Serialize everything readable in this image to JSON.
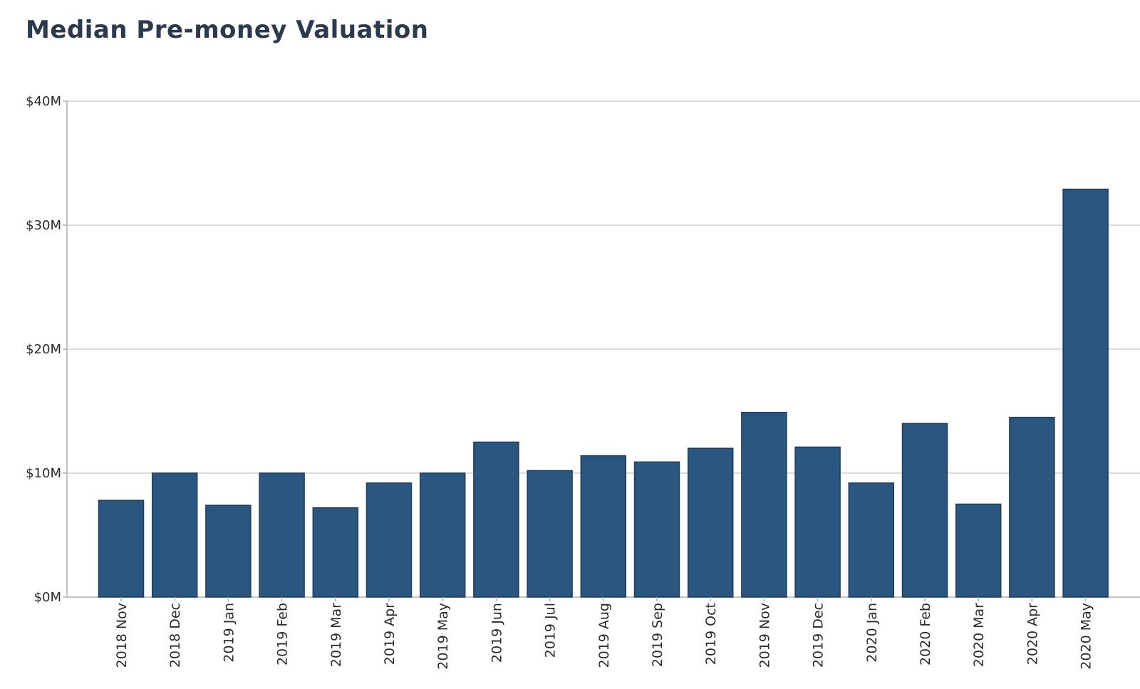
{
  "chart_data": {
    "type": "bar",
    "title": "Median Pre-money Valuation",
    "xlabel": "",
    "ylabel": "",
    "ylim": [
      0,
      40
    ],
    "y_ticks": [
      0,
      10,
      20,
      30,
      40
    ],
    "y_tick_labels": [
      "$0M",
      "$10M",
      "$20M",
      "$30M",
      "$40M"
    ],
    "grid": true,
    "categories": [
      "2018 Nov",
      "2018 Dec",
      "2019 Jan",
      "2019 Feb",
      "2019 Mar",
      "2019 Apr",
      "2019 May",
      "2019 Jun",
      "2019 Jul",
      "2019 Aug",
      "2019 Sep",
      "2019 Oct",
      "2019 Nov",
      "2019 Dec",
      "2020 Jan",
      "2020 Feb",
      "2020 Mar",
      "2020 Apr",
      "2020 May"
    ],
    "values": [
      7.8,
      10.0,
      7.4,
      10.0,
      7.2,
      9.2,
      10.0,
      12.5,
      10.2,
      11.4,
      10.9,
      12.0,
      14.9,
      12.1,
      9.2,
      14.0,
      7.5,
      14.5,
      32.9
    ],
    "colors": {
      "bar": "#2a5680",
      "bar_edge": "#1d3e5e",
      "grid": "#c8c8c8"
    }
  }
}
